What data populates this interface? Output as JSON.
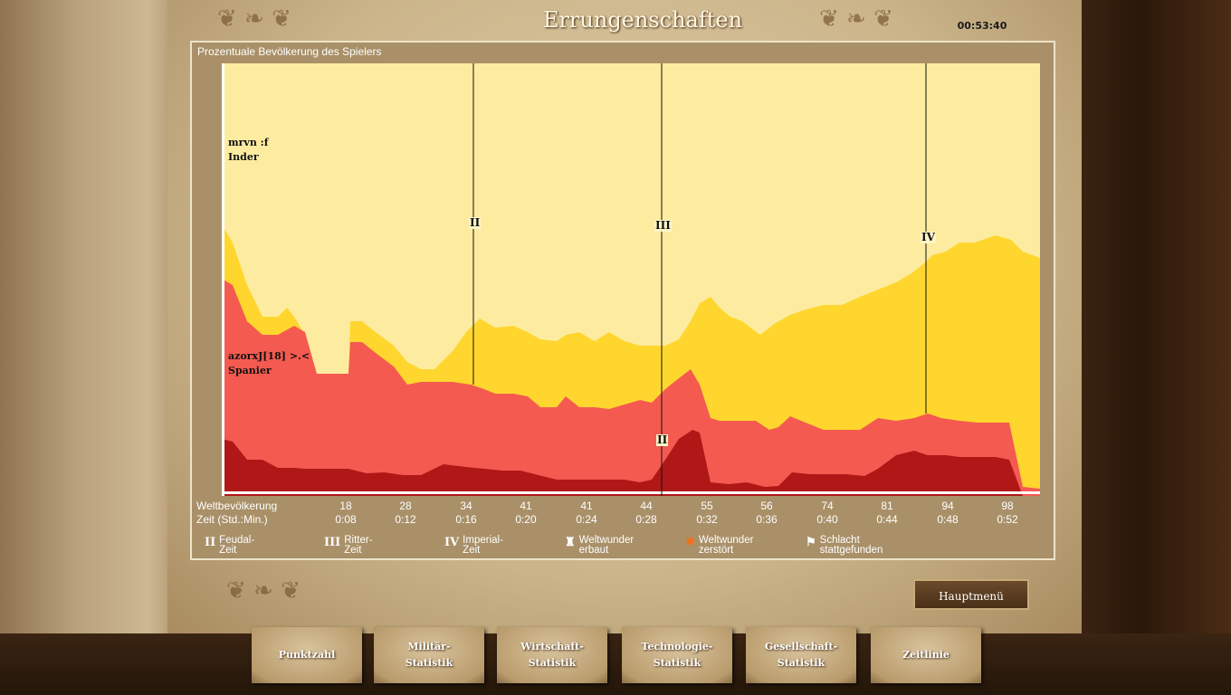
{
  "window": {
    "title": "Errungenschaften",
    "clock": "00:53:40"
  },
  "panel": {
    "title": "Prozentuale Bevölkerung des Spielers"
  },
  "players": [
    {
      "name": "mrvn :f",
      "civ": "Inder",
      "color": "#fdeca0"
    },
    {
      "name": "azorxJ[18] >.<",
      "civ": "Spanier",
      "color": "#f45a50"
    }
  ],
  "era_markers": [
    {
      "label": "II"
    },
    {
      "label": "III"
    },
    {
      "label": "IV"
    },
    {
      "label": "II"
    }
  ],
  "axis": {
    "population_label": "Weltbevölkerung",
    "time_label": "Zeit (Std.:Min.)",
    "population": [
      "18",
      "28",
      "34",
      "41",
      "41",
      "44",
      "55",
      "56",
      "74",
      "81",
      "94",
      "98"
    ],
    "time": [
      "0:08",
      "0:12",
      "0:16",
      "0:20",
      "0:24",
      "0:28",
      "0:32",
      "0:36",
      "0:40",
      "0:44",
      "0:48",
      "0:52"
    ]
  },
  "legend": [
    {
      "icon": "II",
      "line1": "Feudal-",
      "line2": "Zeit"
    },
    {
      "icon": "III",
      "line1": "Ritter-",
      "line2": "Zeit"
    },
    {
      "icon": "IV",
      "line1": "Imperial-",
      "line2": "Zeit"
    },
    {
      "icon": "♜",
      "line1": "Weltwunder",
      "line2": "erbaut"
    },
    {
      "icon": "✸",
      "line1": "Weltwunder",
      "line2": "zerstört"
    },
    {
      "icon": "⚑",
      "line1": "Schlacht",
      "line2": "stattgefunden"
    }
  ],
  "buttons": {
    "main_menu": "Hauptmenü"
  },
  "tabs": [
    {
      "line1": "Punktzahl",
      "line2": ""
    },
    {
      "line1": "Militär-",
      "line2": "Statistik"
    },
    {
      "line1": "Wirtschaft-",
      "line2": "Statistik"
    },
    {
      "line1": "Technologie-",
      "line2": "Statistik"
    },
    {
      "line1": "Gesellschaft-",
      "line2": "Statistik"
    },
    {
      "line1": "Zeitlinie",
      "line2": ""
    }
  ],
  "colors": {
    "inder": "#fdeca0",
    "inder_dark": "#ffd62e",
    "spanier": "#f45a50",
    "spanier_dark": "#b01818"
  }
}
